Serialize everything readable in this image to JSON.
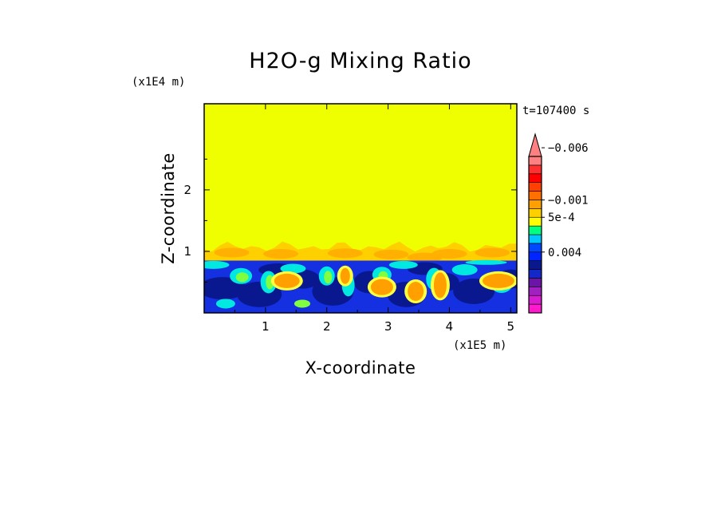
{
  "chart_data": {
    "type": "heatmap",
    "title": "H2O-g Mixing Ratio",
    "xlabel": "X-coordinate",
    "ylabel": "Z-coordinate",
    "x_scale_label": "(x1E5 m)",
    "y_scale_label": "(x1E4 m)",
    "time_label": "t=107400 s",
    "xlim": [
      0,
      5.1
    ],
    "ylim": [
      0,
      3.4
    ],
    "x_ticks": [
      1,
      2,
      3,
      4,
      5
    ],
    "y_ticks": [
      1,
      2
    ],
    "colorbar": {
      "tick_labels": [
        "0.004",
        "5e-4",
        "−0.001",
        "−0.006"
      ],
      "tick_levels": [
        7,
        11,
        13,
        19
      ],
      "colors": [
        "#ff1acc",
        "#d81ccf",
        "#a020c0",
        "#6a14a8",
        "#1428c8",
        "#0a1890",
        "#0026ff",
        "#0048ff",
        "#00c8ff",
        "#00ff80",
        "#ffff00",
        "#ffd000",
        "#ffa000",
        "#ff7000",
        "#ff4000",
        "#ff0000",
        "#ff3030",
        "#ff8080"
      ]
    },
    "fields": {
      "upper_layer": {
        "z_range": [
          1.1,
          3.4
        ],
        "color": "#f0ff00"
      },
      "transition_band": {
        "z_range": [
          0.85,
          1.1
        ],
        "color": "#ffd000"
      },
      "boundary_layer": {
        "z_range": [
          0,
          0.85
        ],
        "color": "#1430e0"
      }
    }
  }
}
